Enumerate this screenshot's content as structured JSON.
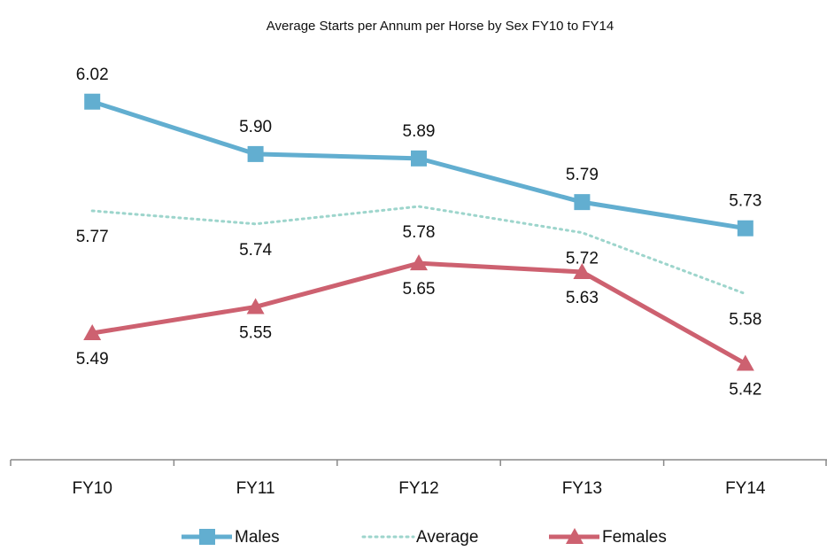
{
  "chart_data": {
    "type": "line",
    "title": "Average Starts per Annum per Horse by Sex FY10 to FY14",
    "categories": [
      "FY10",
      "FY11",
      "FY12",
      "FY13",
      "FY14"
    ],
    "series": [
      {
        "name": "Males",
        "color": "#62aed0",
        "marker": "square",
        "values": [
          6.02,
          5.9,
          5.89,
          5.79,
          5.73
        ],
        "value_labels": [
          "6.02",
          "5.90",
          "5.89",
          "5.79",
          "5.73"
        ]
      },
      {
        "name": "Average",
        "color": "#9dd5cc",
        "dashed": true,
        "values": [
          5.77,
          5.74,
          5.78,
          5.72,
          5.58
        ],
        "value_labels": [
          "5.77",
          "5.74",
          "5.78",
          "5.72",
          "5.58"
        ]
      },
      {
        "name": "Females",
        "color": "#cd6170",
        "marker": "triangle",
        "values": [
          5.49,
          5.55,
          5.65,
          5.63,
          5.42
        ],
        "value_labels": [
          "5.49",
          "5.55",
          "5.65",
          "5.63",
          "5.42"
        ]
      }
    ],
    "ylim": [
      5.2,
      6.2
    ],
    "legend": "bottom"
  }
}
